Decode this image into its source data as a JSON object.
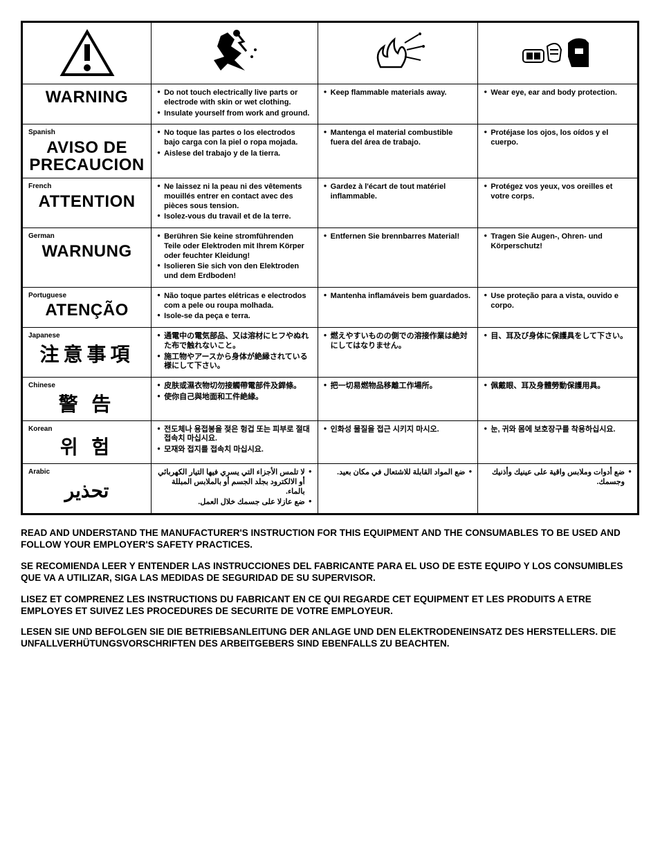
{
  "icons": {
    "warning": "warning-triangle",
    "shock": "electric-shock",
    "fire": "fire-sparks",
    "ppe": "ppe-gear"
  },
  "rows": [
    {
      "lang_label": "",
      "heading": "WARNING",
      "heading_class": "heading",
      "c1": [
        "Do not touch electrically live parts or electrode with skin or wet clothing.",
        "Insulate yourself from work and ground."
      ],
      "c2": [
        "Keep flammable materials away."
      ],
      "c3": [
        "Wear eye, ear and body protection."
      ]
    },
    {
      "lang_label": "Spanish",
      "heading": "AVISO DE PRECAUCION",
      "heading_class": "heading",
      "c1": [
        "No toque las partes o los electrodos bajo carga con la piel o ropa mojada.",
        "Aislese del trabajo y de la tierra."
      ],
      "c2": [
        "Mantenga el material combustible fuera del área de trabajo."
      ],
      "c3": [
        "Protéjase los ojos, los oídos y el cuerpo."
      ]
    },
    {
      "lang_label": "French",
      "heading": "ATTENTION",
      "heading_class": "heading",
      "c1": [
        "Ne laissez ni la peau ni des vêtements mouillés entrer en contact avec des pièces sous tension.",
        "Isolez-vous du travail et de la terre."
      ],
      "c2": [
        "Gardez à l'écart de tout matériel inflammable."
      ],
      "c3": [
        "Protégez vos yeux, vos oreilles et votre corps."
      ]
    },
    {
      "lang_label": "German",
      "heading": "WARNUNG",
      "heading_class": "heading",
      "c1": [
        "Berühren Sie keine stromführenden Teile oder Elektroden mit Ihrem Körper oder feuchter Kleidung!",
        "Isolieren Sie sich von den Elektroden und dem Erdboden!"
      ],
      "c2": [
        "Entfernen Sie brennbarres Material!"
      ],
      "c3": [
        "Tragen Sie Augen-, Ohren- und Körperschutz!"
      ]
    },
    {
      "lang_label": "Portuguese",
      "heading": "ATENÇÃO",
      "heading_class": "heading",
      "c1": [
        "Não toque partes elétricas e electrodos com a pele ou roupa molhada.",
        "Isole-se da peça e terra."
      ],
      "c2": [
        "Mantenha inflamáveis bem guardados."
      ],
      "c3": [
        "Use proteção para a vista, ouvido e corpo."
      ]
    },
    {
      "lang_label": "Japanese",
      "heading": "注意事項",
      "heading_class": "heading-cjk",
      "c1": [
        "通電中の電気部品、又は溶材にヒフやぬれた布で触れないこと。",
        "施工物やアースから身体が絶縁されている様にして下さい。"
      ],
      "c2": [
        "燃えやすいものの側での溶接作業は絶対にしてはなりません。"
      ],
      "c3": [
        "目、耳及び身体に保護具をして下さい。"
      ]
    },
    {
      "lang_label": "Chinese",
      "heading": "警 告",
      "heading_class": "heading-cjk",
      "c1": [
        "皮肤或濕衣物切勿接觸帶電部件及銲條。",
        "使你自己與地面和工件絶緣。"
      ],
      "c2": [
        "把一切易燃物品移離工作場所。"
      ],
      "c3": [
        "佩戴眼、耳及身體勞動保護用具。"
      ]
    },
    {
      "lang_label": "Korean",
      "heading": "위 험",
      "heading_class": "heading-cjk",
      "c1": [
        "전도체나 용접봉을 젖은 헝겁 또는 피부로 절대 접속치 마십시요.",
        "모재와 접지를 접속치 마십시요."
      ],
      "c2": [
        "인화성 물질을 접근 시키지 마시오."
      ],
      "c3": [
        "눈, 귀와 몸에 보호장구를 착용하십시요."
      ]
    },
    {
      "lang_label": "Arabic",
      "heading": "تحذير",
      "heading_class": "heading-cjk",
      "arabic": true,
      "c1": [
        "لا تلمس الأجزاء التي يسري فيها التيار الكهربائي أو الالكترود بجلد الجسم أو بالملابس المبللة بالماء.",
        "ضع عازلا على جسمك خلال العمل."
      ],
      "c2": [
        "ضع المواد القابلة للاشتعال في مكان بعيد."
      ],
      "c3": [
        "ضع أدوات وملابس واقية على عينيك وأذنيك وجسمك."
      ]
    }
  ],
  "footer": [
    "READ AND UNDERSTAND THE MANUFACTURER'S INSTRUCTION FOR THIS EQUIPMENT AND THE CONSUMABLES TO BE USED AND FOLLOW YOUR EMPLOYER'S SAFETY PRACTICES.",
    "SE RECOMIENDA LEER Y ENTENDER LAS INSTRUCCIONES DEL FABRICANTE PARA EL USO DE ESTE EQUIPO Y LOS CONSUMIBLES QUE VA A UTILIZAR, SIGA LAS MEDIDAS DE SEGURIDAD DE SU SUPERVISOR.",
    "LISEZ ET COMPRENEZ LES INSTRUCTIONS DU FABRICANT EN CE QUI REGARDE CET EQUIPMENT ET LES PRODUITS A ETRE EMPLOYES ET SUIVEZ LES PROCEDURES DE SECURITE DE VOTRE EMPLOYEUR.",
    "LESEN SIE UND BEFOLGEN SIE DIE BETRIEBSANLEITUNG DER ANLAGE UND DEN ELEKTRODENEINSATZ DES HERSTELLERS. DIE UNFALLVERHÜTUNGSVORSCHRIFTEN DES ARBEITGEBERS SIND EBENFALLS ZU BEACHTEN."
  ],
  "colors": {
    "border": "#000000",
    "text": "#000000",
    "bg": "#ffffff"
  }
}
